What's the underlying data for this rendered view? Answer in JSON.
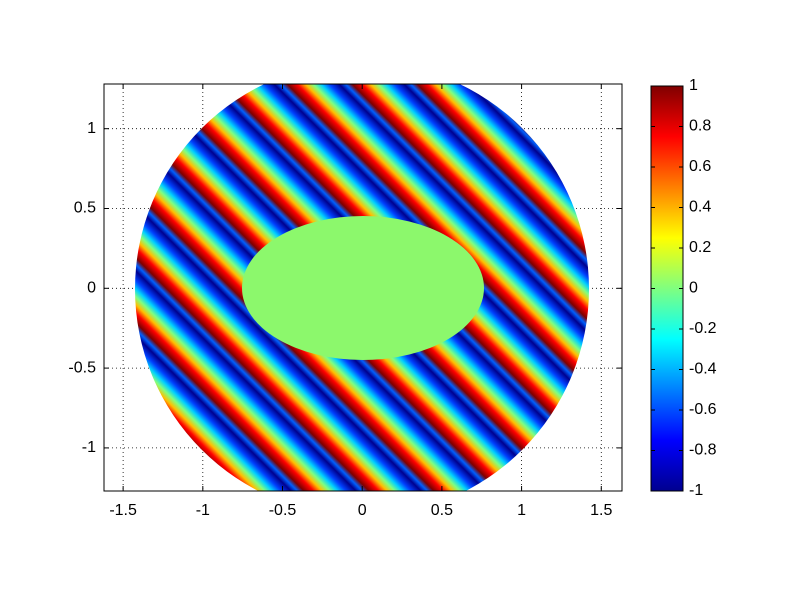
{
  "chart_data": {
    "type": "heatmap",
    "xlim": [
      -1.62,
      1.63
    ],
    "ylim": [
      -1.27,
      1.28
    ],
    "xticks": [
      -1.5,
      -1,
      -0.5,
      0,
      0.5,
      1,
      1.5
    ],
    "yticks": [
      -1,
      -0.5,
      0,
      0.5,
      1
    ],
    "grid": true,
    "colorbar": {
      "clim": [
        -1,
        1
      ],
      "ticks": [
        -1,
        -0.8,
        -0.6,
        -0.4,
        -0.2,
        0,
        0.2,
        0.4,
        0.6,
        0.8,
        1
      ]
    }
  }
}
